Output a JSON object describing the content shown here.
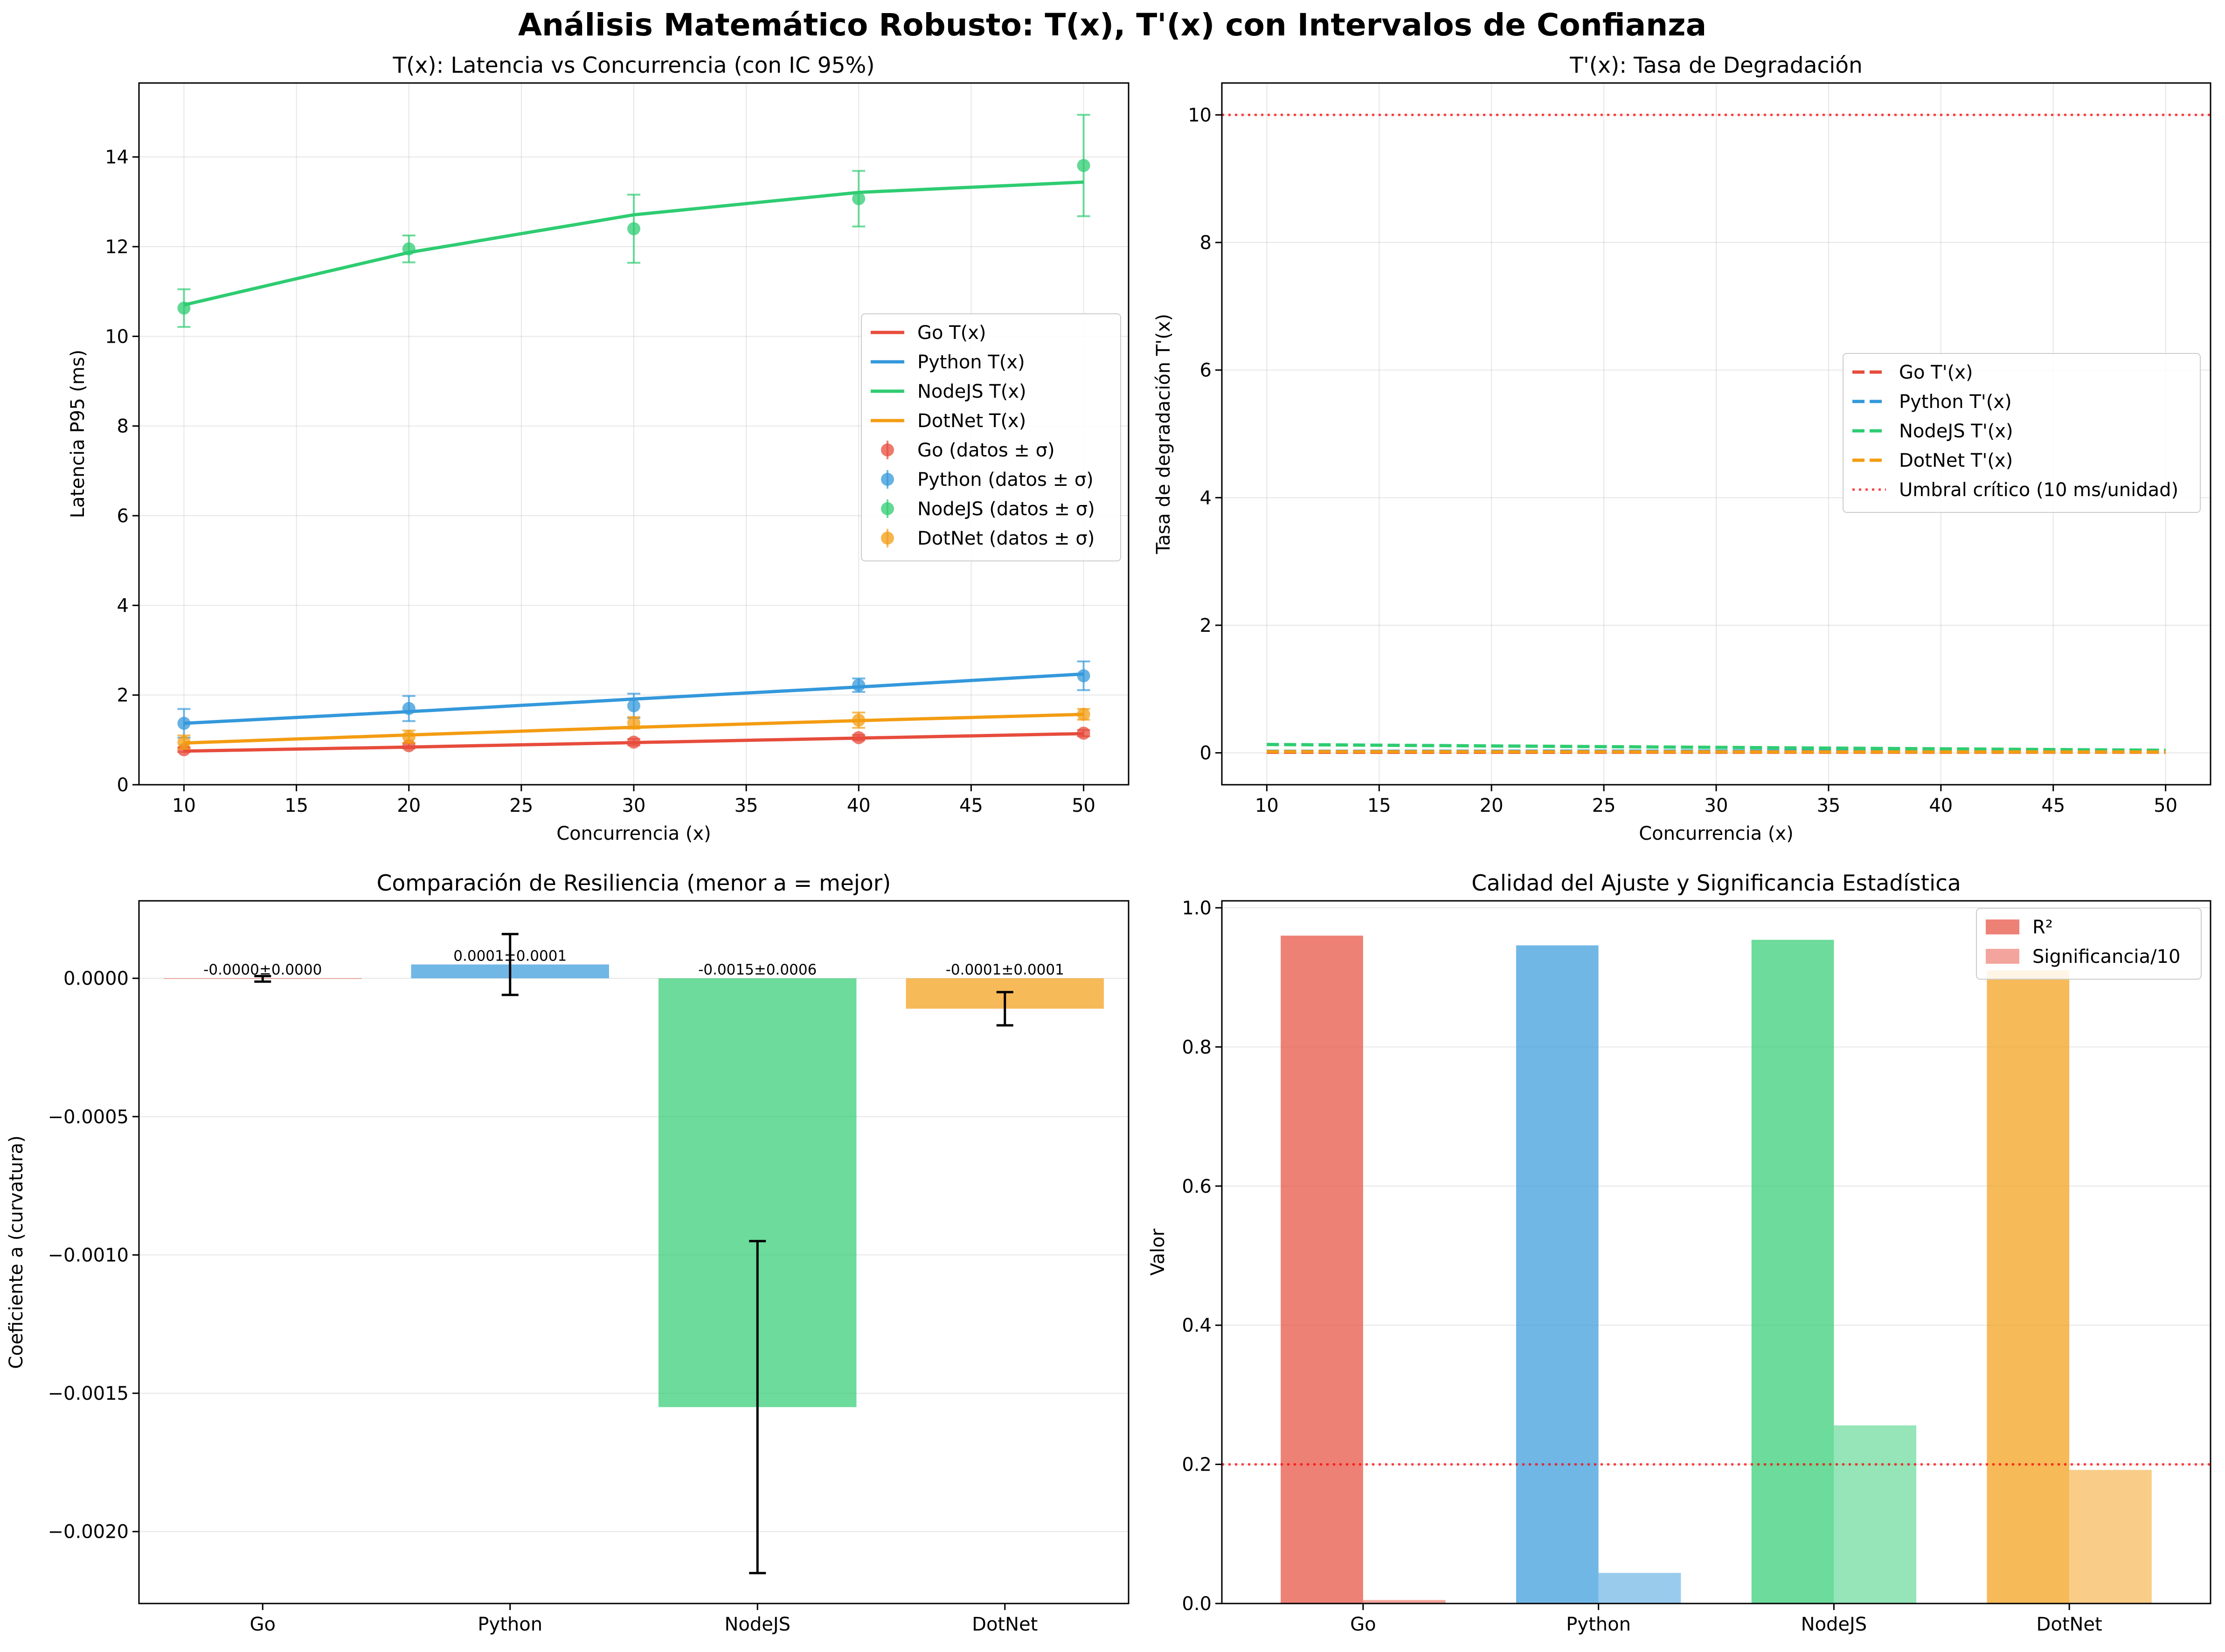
{
  "title": "Análisis Matemático Robusto: T(x), T'(x) con Intervalos de Confianza",
  "colors": {
    "Go": "#e74c3c",
    "Python": "#3498db",
    "NodeJS": "#2ecc71",
    "DotNet": "#f39c12",
    "threshold": "#ff0000"
  },
  "chart_data": [
    {
      "id": "tx",
      "type": "line",
      "title": "T(x): Latencia vs Concurrencia (con IC 95%)",
      "xlabel": "Concurrencia (x)",
      "ylabel": "Latencia P95 (ms)",
      "xlim": [
        8,
        52
      ],
      "ylim": [
        0,
        15.65
      ],
      "xticks": [
        10,
        15,
        20,
        25,
        30,
        35,
        40,
        45,
        50
      ],
      "yticks": [
        0,
        2,
        4,
        6,
        8,
        10,
        12,
        14
      ],
      "grid": true,
      "legend_position": "center-right",
      "x": [
        10,
        20,
        30,
        40,
        50
      ],
      "series": [
        {
          "name": "Go T(x)",
          "key": "Go",
          "fit": [
            0.75,
            0.84,
            0.94,
            1.04,
            1.14
          ],
          "data_name": "Go (datos ± σ)",
          "data": [
            0.78,
            0.87,
            0.95,
            1.05,
            1.15
          ],
          "err": [
            0.05,
            0.06,
            0.07,
            0.06,
            0.07
          ]
        },
        {
          "name": "Python T(x)",
          "key": "Python",
          "fit": [
            1.37,
            1.63,
            1.91,
            2.18,
            2.47
          ],
          "data_name": "Python (datos ± σ)",
          "data": [
            1.37,
            1.7,
            1.76,
            2.22,
            2.43
          ],
          "err": [
            0.32,
            0.28,
            0.27,
            0.15,
            0.32
          ]
        },
        {
          "name": "NodeJS T(x)",
          "key": "NodeJS",
          "fit": [
            10.7,
            11.87,
            12.71,
            13.21,
            13.44
          ],
          "data_name": "NodeJS (datos ± σ)",
          "data": [
            10.63,
            11.95,
            12.4,
            13.07,
            13.81
          ],
          "err": [
            0.42,
            0.3,
            0.76,
            0.62,
            1.13
          ]
        },
        {
          "name": "DotNet T(x)",
          "key": "DotNet",
          "fit": [
            0.93,
            1.11,
            1.28,
            1.43,
            1.57
          ],
          "data_name": "DotNet (datos ± σ)",
          "data": [
            0.95,
            1.07,
            1.38,
            1.44,
            1.57
          ],
          "err": [
            0.15,
            0.14,
            0.13,
            0.17,
            0.12
          ]
        }
      ]
    },
    {
      "id": "dtx",
      "type": "line",
      "title": "T'(x): Tasa de Degradación",
      "xlabel": "Concurrencia (x)",
      "ylabel": "Tasa de degradación T'(x)",
      "xlim": [
        8,
        52
      ],
      "ylim": [
        -0.5,
        10.5
      ],
      "xticks": [
        10,
        15,
        20,
        25,
        30,
        35,
        40,
        45,
        50
      ],
      "yticks": [
        0,
        2,
        4,
        6,
        8,
        10
      ],
      "grid": true,
      "legend_position": "center-right",
      "x": [
        10,
        50
      ],
      "series": [
        {
          "name": "Go T'(x)",
          "key": "Go",
          "values": [
            0.009,
            0.01
          ]
        },
        {
          "name": "Python T'(x)",
          "key": "Python",
          "values": [
            0.024,
            0.03
          ]
        },
        {
          "name": "NodeJS T'(x)",
          "key": "NodeJS",
          "values": [
            0.131,
            0.04
          ]
        },
        {
          "name": "DotNet T'(x)",
          "key": "DotNet",
          "values": [
            0.019,
            0.013
          ]
        }
      ],
      "threshold": {
        "name": "Umbral crítico (10 ms/unidad)",
        "value": 10
      }
    },
    {
      "id": "curv",
      "type": "bar",
      "title": "Comparación de Resiliencia (menor a = mejor)",
      "xlabel": "",
      "ylabel": "Coeficiente a (curvatura)",
      "ylim": [
        -0.00226,
        0.00028
      ],
      "yticks": [
        0.0,
        -0.0005,
        -0.001,
        -0.0015,
        -0.002
      ],
      "ytick_labels": [
        "0.0000",
        "−0.0005",
        "−0.0010",
        "−0.0015",
        "−0.0020"
      ],
      "grid": true,
      "categories": [
        "Go",
        "Python",
        "NodeJS",
        "DotNet"
      ],
      "values": [
        -2e-06,
        5e-05,
        -0.00155,
        -0.00011
      ],
      "errors": [
        1e-05,
        0.00011,
        0.0006,
        6e-05
      ],
      "labels": [
        "-0.0000±0.0000",
        "0.0001±0.0001",
        "-0.0015±0.0006",
        "-0.0001±0.0001"
      ]
    },
    {
      "id": "quality",
      "type": "bar",
      "title": "Calidad del Ajuste y Significancia Estadística",
      "xlabel": "",
      "ylabel": "Valor",
      "ylim": [
        0,
        1.01
      ],
      "yticks": [
        0.0,
        0.2,
        0.4,
        0.6,
        0.8,
        1.0
      ],
      "grid": true,
      "legend_position": "top-right",
      "categories": [
        "Go",
        "Python",
        "NodeJS",
        "DotNet"
      ],
      "series": [
        {
          "name": "R²",
          "values": [
            0.96,
            0.946,
            0.954,
            0.91
          ]
        },
        {
          "name": "Significancia/10",
          "values": [
            0.005,
            0.044,
            0.256,
            0.192
          ]
        }
      ],
      "threshold": {
        "value": 0.2
      }
    }
  ]
}
